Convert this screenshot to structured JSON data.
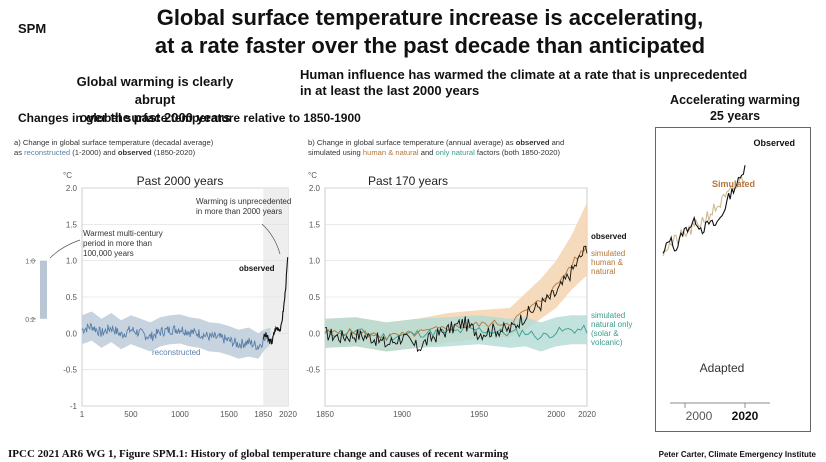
{
  "header": {
    "spm": "SPM",
    "title_line1": "Global surface temperature increase is accelerating,",
    "title_line2": "at a rate faster over the past decade than anticipated",
    "left_subtitle_line1": "Global warming is clearly abrupt",
    "left_subtitle_line2": "over the past 2000 years",
    "mid_subtitle_line1": "Human influence has warmed the climate at a rate that is unprecedented",
    "mid_subtitle_line2": "in at least the last 2000 years",
    "inset_title_line1": "Accelerating warming",
    "inset_title_line2": "25 years",
    "changes": "Changes in global surface temperature relative to 1850-1900"
  },
  "captions": {
    "a_part1": "a) Change in global surface temperature (decadal average)",
    "a_part2_prefix": "as ",
    "a_reconstructed": "reconstructed",
    "a_part3": " (1-2000) and ",
    "a_observed": "observed",
    "a_part4": " (1850-2020)",
    "b_part1": "b) Change in global surface temperature (annual average) as ",
    "b_observed": "observed",
    "b_part2": " and",
    "b_part3": "simulated using ",
    "b_human": "human & natural",
    "b_part4": " and ",
    "b_natural": "only natural",
    "b_part5": " factors (both 1850-2020)"
  },
  "footer": {
    "source": "IPCC 2021 AR6 WG 1, Figure SPM.1: History of global temperature change and causes of recent warming",
    "credit": "Peter Carter, Climate Emergency Institute"
  },
  "colors": {
    "reconstructed": "#5a7fa8",
    "reconstructed_band": "#c7d4e0",
    "observed": "#111111",
    "human": "#b5763a",
    "human_band": "#f3d3b0",
    "natural": "#3a9c8f",
    "natural_band": "#b3dbd4",
    "shade": "#eeeeee"
  },
  "chart_data": [
    {
      "type": "line",
      "panel_title": "Past 2000 years",
      "unit": "°C",
      "xlim": [
        1,
        2020
      ],
      "ylim": [
        -1,
        2
      ],
      "x_ticks": [
        "1",
        "500",
        "1000",
        "1500",
        "1850",
        "2020"
      ],
      "x_tick_values": [
        1,
        500,
        1000,
        1500,
        1850,
        2020
      ],
      "y_ticks": [
        "2.0",
        "1.5",
        "1.0",
        "0.5",
        "0.0",
        "-0.5",
        "-1"
      ],
      "y_tick_values": [
        2,
        1.5,
        1,
        0.5,
        0,
        -0.5,
        -1
      ],
      "annotations": {
        "warming": "Warming is unprecedented in more than 2000 years",
        "warmest": "Warmest multi-century period in more than 100,000 years",
        "observed": "observed",
        "reconstructed": "reconstructed"
      },
      "side_bar": {
        "top_label": "1.0",
        "bottom_label": "0.2",
        "range": [
          0.2,
          1.0
        ]
      },
      "series": [
        {
          "name": "reconstructed",
          "x": [
            1,
            100,
            200,
            300,
            400,
            500,
            600,
            700,
            800,
            900,
            1000,
            1100,
            1200,
            1300,
            1400,
            1500,
            1600,
            1700,
            1800,
            1850,
            1900
          ],
          "y": [
            0.05,
            0.1,
            0.0,
            0.08,
            -0.02,
            0.05,
            0.0,
            -0.05,
            0.02,
            0.05,
            0.06,
            0.02,
            0.0,
            -0.05,
            -0.06,
            -0.1,
            -0.15,
            -0.12,
            -0.18,
            -0.1,
            -0.05
          ],
          "lower": [
            -0.15,
            -0.1,
            -0.2,
            -0.12,
            -0.22,
            -0.15,
            -0.2,
            -0.25,
            -0.18,
            -0.15,
            -0.14,
            -0.18,
            -0.2,
            -0.25,
            -0.26,
            -0.3,
            -0.35,
            -0.32,
            -0.35,
            -0.25,
            -0.15
          ],
          "upper": [
            0.25,
            0.3,
            0.2,
            0.28,
            0.18,
            0.25,
            0.2,
            0.15,
            0.22,
            0.25,
            0.26,
            0.22,
            0.2,
            0.15,
            0.14,
            0.1,
            0.05,
            0.08,
            0.0,
            0.05,
            0.08
          ]
        },
        {
          "name": "observed",
          "x": [
            1850,
            1870,
            1890,
            1910,
            1930,
            1950,
            1970,
            1980,
            1990,
            2000,
            2010,
            2020
          ],
          "y": [
            -0.05,
            -0.02,
            -0.1,
            -0.12,
            0.05,
            0.08,
            0.05,
            0.2,
            0.35,
            0.55,
            0.8,
            1.1
          ]
        }
      ]
    },
    {
      "type": "line",
      "panel_title": "Past 170 years",
      "unit": "°C",
      "xlim": [
        1850,
        2020
      ],
      "ylim": [
        -1,
        2
      ],
      "x_ticks": [
        "1850",
        "1900",
        "1950",
        "2000",
        "2020"
      ],
      "x_tick_values": [
        1850,
        1900,
        1950,
        2000,
        2020
      ],
      "y_ticks": [
        "2.0",
        "1.5",
        "1.0",
        "0.5",
        "0.0",
        "-0.5"
      ],
      "y_tick_values": [
        2,
        1.5,
        1,
        0.5,
        0,
        -0.5
      ],
      "series": [
        {
          "name": "observed",
          "x": [
            1850,
            1860,
            1870,
            1880,
            1890,
            1900,
            1910,
            1920,
            1930,
            1940,
            1950,
            1960,
            1970,
            1980,
            1990,
            2000,
            2010,
            2020
          ],
          "y": [
            0.0,
            -0.05,
            -0.02,
            -0.05,
            -0.15,
            -0.05,
            -0.2,
            -0.05,
            0.05,
            0.15,
            0.0,
            0.05,
            0.05,
            0.25,
            0.4,
            0.55,
            0.85,
            1.2
          ]
        },
        {
          "name": "simulated human & natural",
          "x": [
            1850,
            1870,
            1890,
            1910,
            1930,
            1950,
            1970,
            1980,
            1990,
            2000,
            2010,
            2020
          ],
          "y": [
            0.0,
            0.02,
            -0.05,
            0.0,
            0.08,
            0.12,
            0.15,
            0.3,
            0.45,
            0.65,
            0.95,
            1.2
          ],
          "lower": [
            -0.2,
            -0.18,
            -0.25,
            -0.2,
            -0.12,
            -0.08,
            -0.05,
            0.05,
            0.2,
            0.35,
            0.6,
            0.8
          ],
          "upper": [
            0.2,
            0.22,
            0.15,
            0.2,
            0.28,
            0.32,
            0.35,
            0.55,
            0.75,
            1.0,
            1.35,
            1.8
          ]
        },
        {
          "name": "simulated natural only (solar & volcanic)",
          "x": [
            1850,
            1870,
            1890,
            1910,
            1930,
            1950,
            1970,
            1980,
            1990,
            2000,
            2010,
            2020
          ],
          "y": [
            0.0,
            0.02,
            -0.05,
            0.0,
            0.02,
            0.05,
            0.0,
            0.02,
            -0.05,
            0.02,
            0.05,
            0.05
          ],
          "lower": [
            -0.2,
            -0.18,
            -0.25,
            -0.2,
            -0.18,
            -0.15,
            -0.2,
            -0.18,
            -0.25,
            -0.18,
            -0.15,
            -0.15
          ],
          "upper": [
            0.2,
            0.22,
            0.15,
            0.2,
            0.22,
            0.25,
            0.2,
            0.22,
            0.15,
            0.22,
            0.25,
            0.25
          ]
        }
      ],
      "legend": {
        "observed": "observed",
        "human_line1": "simulated",
        "human_line2": "human &",
        "human_line3": "natural",
        "natural_line1": "simulated",
        "natural_line2": "natural only",
        "natural_line3": "(solar &",
        "natural_line4": "volcanic)"
      }
    },
    {
      "type": "line",
      "panel_title": "Accelerating warming 25 years",
      "xlim": [
        1995,
        2020
      ],
      "x_ticks": [
        "2000",
        "2020"
      ],
      "x_tick_values": [
        2000,
        2020
      ],
      "labels": {
        "observed": "Observed",
        "simulated": "Simulated",
        "adapted": "Adapted"
      },
      "series": [
        {
          "name": "Observed",
          "x": [
            1995,
            1997,
            1999,
            2001,
            2003,
            2005,
            2007,
            2009,
            2011,
            2013,
            2015,
            2017,
            2019,
            2020
          ],
          "y": [
            0.4,
            0.55,
            0.45,
            0.6,
            0.65,
            0.7,
            0.62,
            0.68,
            0.66,
            0.75,
            0.9,
            1.0,
            1.08,
            1.2
          ]
        },
        {
          "name": "Simulated",
          "x": [
            1995,
            2000,
            2005,
            2010,
            2015,
            2020
          ],
          "y": [
            0.45,
            0.55,
            0.65,
            0.78,
            0.92,
            1.08
          ]
        }
      ]
    }
  ]
}
